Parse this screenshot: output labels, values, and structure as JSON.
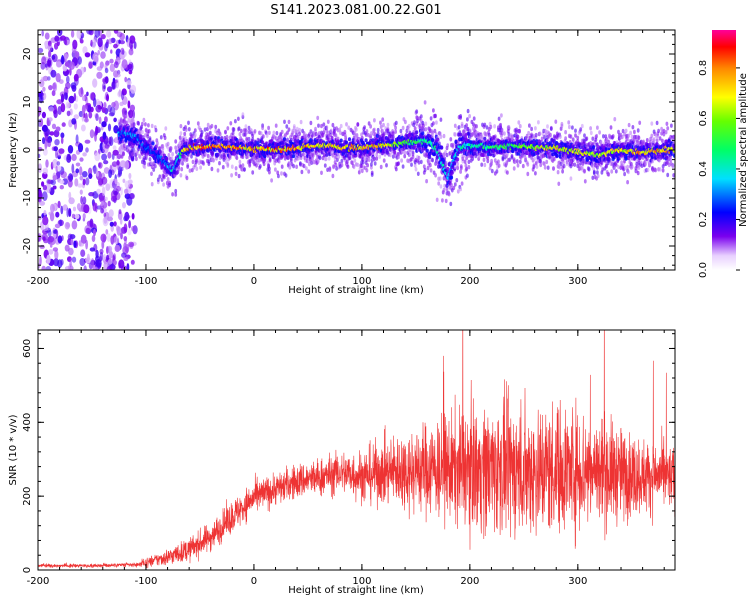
{
  "title": "S141.2023.081.00.22.G01",
  "chart_data": [
    {
      "type": "heatmap",
      "xlabel": "Height of straight line (km)",
      "ylabel": "Frequency (Hz)",
      "xlim": [
        -200,
        390
      ],
      "ylim": [
        -25,
        25
      ],
      "x_ticks": [
        -200,
        -100,
        0,
        100,
        200,
        300
      ],
      "y_ticks": [
        -20,
        -10,
        0,
        10,
        20
      ],
      "colorbar": {
        "label": "Normalized spectral amplitude",
        "range": [
          0.0,
          0.95
        ],
        "ticks": [
          0.0,
          0.2,
          0.4,
          0.6,
          0.8
        ],
        "colormap": "rainbow (white-violet-blue-cyan-green-yellow-red-magenta)"
      },
      "ridge": {
        "x": [
          -120,
          -110,
          -100,
          -90,
          -80,
          -75,
          -70,
          -65,
          -60,
          -50,
          -40,
          -20,
          0,
          20,
          40,
          60,
          80,
          100,
          120,
          140,
          160,
          170,
          175,
          180,
          185,
          190,
          200,
          220,
          240,
          260,
          280,
          300,
          320,
          340,
          360,
          380,
          390
        ],
        "y": [
          3.5,
          3,
          0.5,
          -1,
          -3,
          -4.5,
          -2,
          0,
          0.5,
          0.5,
          0.8,
          0.6,
          0.3,
          0,
          0.5,
          1,
          0.5,
          0.5,
          1,
          1.5,
          2,
          0,
          -3,
          -6,
          -2,
          0.5,
          1,
          0.5,
          1,
          0.5,
          0.5,
          -0.5,
          -1,
          0,
          -0.5,
          0,
          0
        ],
        "peak_amplitude": [
          0.35,
          0.35,
          0.3,
          0.3,
          0.35,
          0.45,
          0.4,
          0.8,
          0.85,
          0.9,
          0.9,
          0.9,
          0.85,
          0.9,
          0.9,
          0.8,
          0.8,
          0.85,
          0.8,
          0.6,
          0.5,
          0.5,
          0.45,
          0.4,
          0.4,
          0.45,
          0.5,
          0.55,
          0.6,
          0.7,
          0.8,
          0.75,
          0.7,
          0.8,
          0.85,
          0.85,
          0.8
        ]
      }
    },
    {
      "type": "line",
      "xlabel": "Height of straight line (km)",
      "ylabel": "SNR (10 * v/v)",
      "xlim": [
        -200,
        390
      ],
      "ylim": [
        0,
        650
      ],
      "x_ticks": [
        -200,
        -100,
        0,
        100,
        200,
        300
      ],
      "y_ticks": [
        0,
        200,
        400,
        600
      ],
      "color": "#ee3333",
      "envelope": {
        "x": [
          -200,
          -150,
          -110,
          -100,
          -80,
          -60,
          -40,
          -20,
          0,
          20,
          40,
          60,
          80,
          100,
          120,
          140,
          160,
          180,
          200,
          220,
          240,
          260,
          280,
          300,
          320,
          340,
          360,
          380,
          390
        ],
        "mean": [
          12,
          12,
          14,
          20,
          35,
          55,
          90,
          145,
          195,
          220,
          240,
          250,
          265,
          255,
          265,
          270,
          275,
          275,
          280,
          275,
          275,
          270,
          275,
          275,
          270,
          260,
          255,
          255,
          250
        ],
        "spread": [
          4,
          4,
          5,
          10,
          18,
          25,
          30,
          35,
          35,
          35,
          38,
          40,
          45,
          55,
          70,
          85,
          100,
          115,
          130,
          140,
          140,
          140,
          140,
          135,
          120,
          100,
          80,
          70,
          65
        ],
        "peak": [
          620,
          600,
          535,
          640,
          560
        ]
      }
    }
  ]
}
